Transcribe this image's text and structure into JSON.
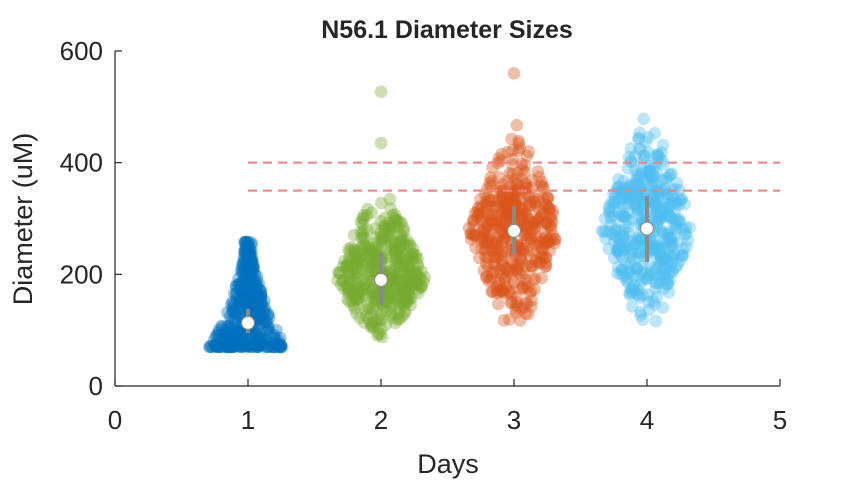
{
  "chart_data": {
    "type": "scatter",
    "subtype": "violin-swarm",
    "title": "N56.1 Diameter Sizes",
    "xlabel": "Days",
    "ylabel": "Diameter (uM)",
    "xlim": [
      0,
      5
    ],
    "ylim": [
      0,
      600
    ],
    "xticks": [
      0,
      1,
      2,
      3,
      4,
      5
    ],
    "yticks": [
      0,
      200,
      400,
      600
    ],
    "grid": false,
    "reference_lines": [
      {
        "y": 350,
        "style": "dashed",
        "color": "#f08080"
      },
      {
        "y": 400,
        "style": "dashed",
        "color": "#f08080"
      }
    ],
    "series": [
      {
        "x": 1,
        "color": "#0072bd",
        "median": 113,
        "q1": 95,
        "q3": 138,
        "min": 70,
        "max": 260,
        "outliers": [],
        "shape": "bottom"
      },
      {
        "x": 2,
        "color": "#77ac30",
        "median": 190,
        "q1": 145,
        "q3": 238,
        "min": 70,
        "max": 370,
        "outliers": [
          435,
          527
        ],
        "shape": "diamond"
      },
      {
        "x": 3,
        "color": "#d95319",
        "median": 278,
        "q1": 235,
        "q3": 322,
        "min": 72,
        "max": 485,
        "outliers": [
          560
        ],
        "shape": "diamond"
      },
      {
        "x": 4,
        "color": "#4dbeee",
        "median": 282,
        "q1": 222,
        "q3": 340,
        "min": 72,
        "max": 500,
        "outliers": [],
        "shape": "diamond"
      }
    ]
  }
}
